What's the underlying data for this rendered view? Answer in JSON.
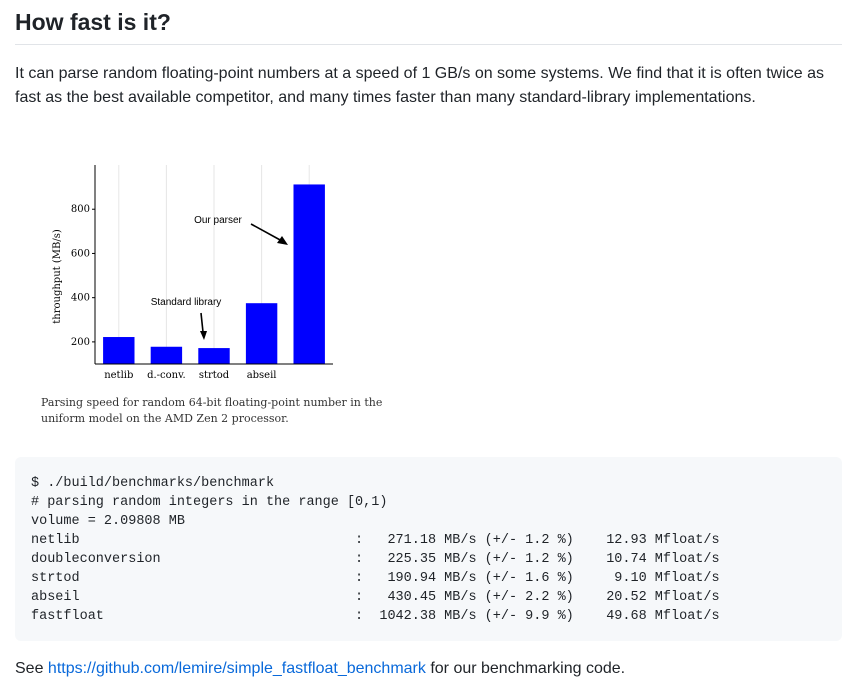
{
  "heading": "How fast is it?",
  "intro": "It can parse random floating-point numbers at a speed of 1 GB/s on some systems. We find that it is often twice as fast as the best available competitor, and many times faster than many standard-library implementations.",
  "chart_data": {
    "type": "bar",
    "categories": [
      "netlib",
      "d.-conv.",
      "strtod",
      "abseil",
      "fastfloat"
    ],
    "category_labels_shown": [
      "netlib",
      "d.-conv.",
      "strtod",
      "abseil",
      ""
    ],
    "values": [
      222,
      178,
      172,
      375,
      912
    ],
    "ylabel": "throughput (MB/s)",
    "xlabel": "",
    "yticks": [
      200,
      400,
      600,
      800
    ],
    "ylim": [
      100,
      1000
    ],
    "bar_color": "#0000ff",
    "grid": "vertical",
    "annotations": [
      {
        "text": "Our parser",
        "target": "fastfloat"
      },
      {
        "text": "Standard library",
        "target": "strtod"
      }
    ],
    "caption": "Parsing speed for random 64-bit floating-point number in the uniform model on the AMD Zen 2 processor."
  },
  "code": {
    "lines": [
      "$ ./build/benchmarks/benchmark",
      "# parsing random integers in the range [0,1)",
      "volume = 2.09808 MB",
      "netlib                                  :   271.18 MB/s (+/- 1.2 %)    12.93 Mfloat/s",
      "doubleconversion                        :   225.35 MB/s (+/- 1.2 %)    10.74 Mfloat/s",
      "strtod                                  :   190.94 MB/s (+/- 1.6 %)     9.10 Mfloat/s",
      "abseil                                  :   430.45 MB/s (+/- 2.2 %)    20.52 Mfloat/s",
      "fastfloat                               :  1042.38 MB/s (+/- 9.9 %)    49.68 Mfloat/s"
    ]
  },
  "footer": {
    "prefix": "See ",
    "link_text": "https://github.com/lemire/simple_fastfloat_benchmark",
    "suffix": " for our benchmarking code.",
    "link_color": "#0969da"
  }
}
